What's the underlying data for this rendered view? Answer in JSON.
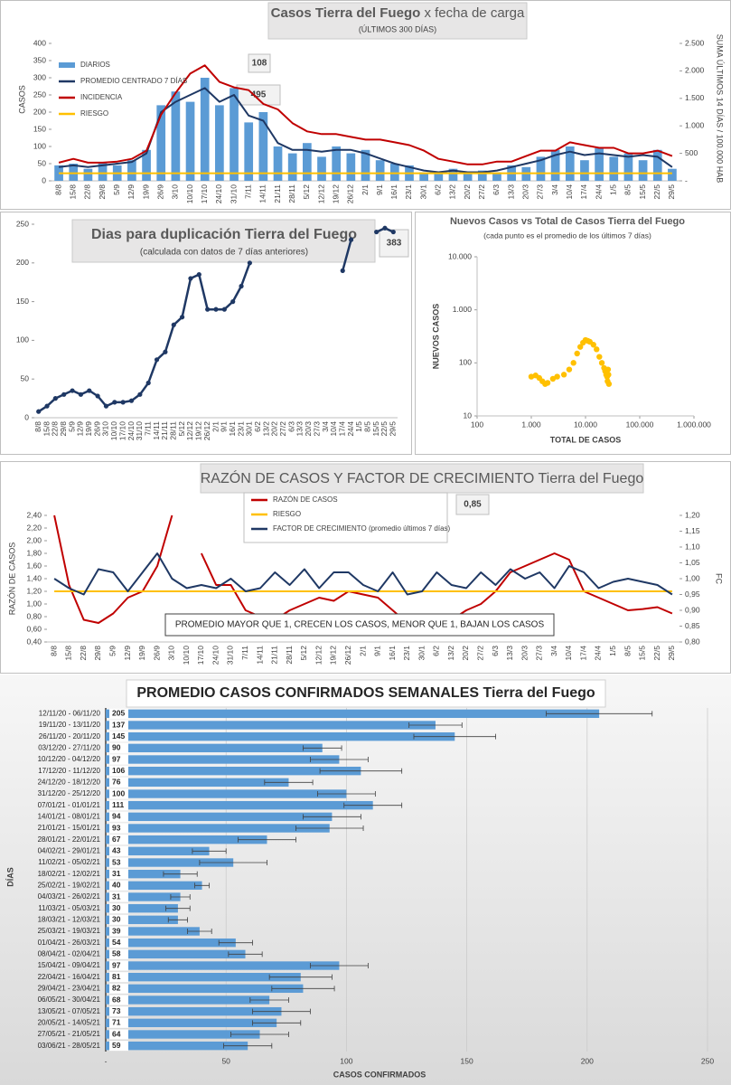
{
  "chart_data": [
    {
      "type": "combo",
      "title": "Casos Tierra del Fuego",
      "title_rest": "x fecha de carga",
      "subtitle": "(ÚLTIMOS 300 DÍAS)",
      "ylabel": "CASOS",
      "y2label": "SUMA ÚLTIMOS 14 DÍAS / 100.000 HAB",
      "annotations": [
        "108",
        "495"
      ],
      "grid": false,
      "categories": [
        "8/8",
        "15/8",
        "22/8",
        "29/8",
        "5/9",
        "12/9",
        "19/9",
        "26/9",
        "3/10",
        "10/10",
        "17/10",
        "24/10",
        "31/10",
        "7/11",
        "14/11",
        "21/11",
        "28/11",
        "5/12",
        "12/12",
        "19/12",
        "26/12",
        "2/1",
        "9/1",
        "16/1",
        "23/1",
        "30/1",
        "6/2",
        "13/2",
        "20/2",
        "27/2",
        "6/3",
        "13/3",
        "20/3",
        "27/3",
        "3/4",
        "10/4",
        "17/4",
        "24/4",
        "1/5",
        "8/5",
        "15/5",
        "22/5",
        "29/5"
      ],
      "ylim": [
        0,
        400
      ],
      "yticks": [
        0,
        50,
        100,
        150,
        200,
        250,
        300,
        350,
        400
      ],
      "y2lim": [
        0,
        2500
      ],
      "y2ticks": [
        {
          "value": 0,
          "label": "-"
        },
        500,
        {
          "value": 1000,
          "label": "1.000"
        },
        {
          "value": 1500,
          "label": "1.500"
        },
        {
          "value": 2000,
          "label": "2.000"
        },
        {
          "value": 2500,
          "label": "2.500"
        }
      ],
      "series": [
        {
          "name": "DIARIOS",
          "style": "bar",
          "color": "#5b9bd5",
          "values": [
            45,
            50,
            35,
            55,
            45,
            60,
            90,
            220,
            260,
            230,
            300,
            220,
            270,
            170,
            200,
            100,
            80,
            110,
            70,
            100,
            80,
            90,
            60,
            50,
            45,
            25,
            20,
            35,
            20,
            30,
            25,
            45,
            40,
            70,
            90,
            100,
            60,
            95,
            70,
            80,
            60,
            90,
            35
          ]
        },
        {
          "name": "PROMEDIO CENTRADO 7 DÍAS",
          "color": "#1f3864",
          "values": [
            40,
            45,
            40,
            45,
            50,
            55,
            80,
            200,
            230,
            250,
            270,
            230,
            250,
            190,
            175,
            110,
            90,
            90,
            85,
            90,
            90,
            80,
            65,
            50,
            40,
            30,
            25,
            30,
            25,
            25,
            30,
            40,
            50,
            60,
            75,
            85,
            75,
            80,
            75,
            70,
            75,
            70,
            40
          ]
        },
        {
          "name": "INCIDENCIA",
          "color": "#c00000",
          "axis": "y2",
          "values": [
            330,
            400,
            330,
            330,
            350,
            400,
            550,
            1200,
            1600,
            1950,
            2100,
            1800,
            1700,
            1650,
            1400,
            1300,
            1050,
            900,
            850,
            850,
            800,
            750,
            750,
            700,
            650,
            550,
            400,
            350,
            300,
            300,
            350,
            350,
            450,
            550,
            550,
            700,
            650,
            600,
            600,
            500,
            500,
            550,
            450
          ]
        },
        {
          "name": "RIESGO",
          "color": "#ffc000",
          "values": [
            22,
            22,
            22,
            22,
            22,
            22,
            22,
            22,
            22,
            22,
            22,
            22,
            22,
            22,
            22,
            22,
            22,
            22,
            22,
            22,
            22,
            22,
            22,
            22,
            22,
            22,
            22,
            22,
            22,
            22,
            22,
            22,
            22,
            22,
            22,
            22,
            22,
            22,
            22,
            22,
            22,
            22,
            22
          ]
        }
      ]
    },
    {
      "type": "line",
      "title": "Dias para duplicación Tierra del Fuego",
      "subtitle": "(calculada con datos de 7 días anteriores)",
      "annotations": [
        "383"
      ],
      "grid": false,
      "categories": [
        "8/8",
        "15/8",
        "22/8",
        "29/8",
        "5/9",
        "12/9",
        "19/9",
        "26/9",
        "3/10",
        "10/10",
        "17/10",
        "24/10",
        "31/10",
        "7/11",
        "14/11",
        "21/11",
        "28/11",
        "5/12",
        "12/12",
        "19/12",
        "26/12",
        "2/1",
        "9/1",
        "16/1",
        "23/1",
        "30/1",
        "6/2",
        "13/2",
        "20/2",
        "27/2",
        "6/3",
        "13/3",
        "20/3",
        "27/3",
        "3/4",
        "10/4",
        "17/4",
        "24/4",
        "1/5",
        "8/5",
        "15/5",
        "22/5",
        "29/5"
      ],
      "ylim": [
        0,
        250
      ],
      "yticks": [
        0,
        50,
        100,
        150,
        200,
        250
      ],
      "series": [
        {
          "color": "#1f3864",
          "markers": true,
          "values": [
            8,
            15,
            25,
            30,
            35,
            30,
            35,
            28,
            15,
            20,
            20,
            22,
            30,
            45,
            75,
            85,
            120,
            130,
            180,
            185,
            140,
            140,
            140,
            150,
            170,
            200,
            null,
            null,
            null,
            null,
            null,
            null,
            null,
            null,
            null,
            null,
            190,
            230,
            null,
            null,
            240,
            245,
            240
          ]
        }
      ]
    },
    {
      "type": "scatter",
      "title": "Nuevos Casos vs Total de Casos Tierra del Fuego",
      "subtitle": "(cada punto es el promedio de los últimos 7 días)",
      "xlabel": "TOTAL DE CASOS",
      "ylabel": "NUEVOS CASOS",
      "log_x": true,
      "log_y": true,
      "color": "#ffc000",
      "xlim": [
        100,
        1000000
      ],
      "xticks": [
        100,
        {
          "value": 1000,
          "label": "1.000"
        },
        {
          "value": 10000,
          "label": "10.000"
        },
        {
          "value": 100000,
          "label": "100.000"
        },
        {
          "value": 1000000,
          "label": "1.000.000"
        }
      ],
      "ylim": [
        10,
        10000
      ],
      "yticks": [
        10,
        100,
        {
          "value": 1000,
          "label": "1.000"
        },
        {
          "value": 10000,
          "label": "10.000"
        }
      ],
      "x": [
        1000,
        1200,
        1400,
        1600,
        1800,
        2000,
        2500,
        3000,
        4000,
        5000,
        6000,
        7000,
        8000,
        9000,
        10000,
        11000,
        12000,
        14000,
        16000,
        18000,
        20000,
        22000,
        23000,
        24000,
        25000,
        25500,
        26000,
        26500,
        27000
      ],
      "values": [
        55,
        58,
        52,
        45,
        40,
        42,
        50,
        55,
        60,
        75,
        100,
        150,
        200,
        240,
        270,
        260,
        250,
        220,
        180,
        130,
        100,
        80,
        70,
        60,
        55,
        45,
        75,
        60,
        40
      ]
    },
    {
      "type": "line",
      "title": "RAZÓN DE CASOS Y FACTOR DE CRECIMIENTO Tierra del Fuego",
      "ylabel": "RAZÓN DE CASOS",
      "y2label": "FC",
      "annotations": [
        "0,85"
      ],
      "note": "PROMEDIO MAYOR QUE 1, CRECEN LOS CASOS, MENOR QUE 1, BAJAN LOS CASOS",
      "grid": false,
      "categories": [
        "8/8",
        "15/8",
        "22/8",
        "29/8",
        "5/9",
        "12/9",
        "19/9",
        "26/9",
        "3/10",
        "10/10",
        "17/10",
        "24/10",
        "31/10",
        "7/11",
        "14/11",
        "21/11",
        "28/11",
        "5/12",
        "12/12",
        "19/12",
        "26/12",
        "2/1",
        "9/1",
        "16/1",
        "23/1",
        "30/1",
        "6/2",
        "13/2",
        "20/2",
        "27/2",
        "6/3",
        "13/3",
        "20/3",
        "27/3",
        "3/4",
        "10/4",
        "17/4",
        "24/4",
        "1/5",
        "8/5",
        "15/5",
        "22/5",
        "29/5"
      ],
      "ylim": [
        0.4,
        2.4
      ],
      "yticks": [
        {
          "value": 0.4,
          "label": "0,40"
        },
        {
          "value": 0.6,
          "label": "0,60"
        },
        {
          "value": 0.8,
          "label": "0,80"
        },
        {
          "value": 1.0,
          "label": "1,00"
        },
        {
          "value": 1.2,
          "label": "1,20"
        },
        {
          "value": 1.4,
          "label": "1,40"
        },
        {
          "value": 1.6,
          "label": "1,60"
        },
        {
          "value": 1.8,
          "label": "1,80"
        },
        {
          "value": 2.0,
          "label": "2,00"
        },
        {
          "value": 2.2,
          "label": "2,20"
        },
        {
          "value": 2.4,
          "label": "2,40"
        }
      ],
      "y2lim": [
        0.8,
        1.2
      ],
      "y2ticks": [
        {
          "value": 0.8,
          "label": "0,80"
        },
        {
          "value": 0.85,
          "label": "0,85"
        },
        {
          "value": 0.9,
          "label": "0,90"
        },
        {
          "value": 0.95,
          "label": "0,95"
        },
        {
          "value": 1.0,
          "label": "1,00"
        },
        {
          "value": 1.05,
          "label": "1,05"
        },
        {
          "value": 1.1,
          "label": "1,10"
        },
        {
          "value": 1.15,
          "label": "1,15"
        },
        {
          "value": 1.2,
          "label": "1,20"
        }
      ],
      "series": [
        {
          "name": "RAZÓN DE CASOS",
          "color": "#c00000",
          "values": [
            2.4,
            1.3,
            0.75,
            0.7,
            0.85,
            1.1,
            1.2,
            1.6,
            2.4,
            null,
            1.8,
            1.3,
            1.3,
            0.9,
            0.8,
            0.75,
            0.9,
            1.0,
            1.1,
            1.05,
            1.2,
            1.15,
            1.1,
            0.9,
            0.7,
            0.55,
            0.6,
            0.75,
            0.9,
            1.0,
            1.2,
            1.5,
            1.6,
            1.7,
            1.8,
            1.7,
            1.2,
            1.1,
            1.0,
            0.9,
            0.92,
            0.95,
            0.85
          ]
        },
        {
          "name": "RIESGO",
          "color": "#ffc000",
          "values": [
            1.2,
            1.2,
            1.2,
            1.2,
            1.2,
            1.2,
            1.2,
            1.2,
            1.2,
            1.2,
            1.2,
            1.2,
            1.2,
            1.2,
            1.2,
            1.2,
            1.2,
            1.2,
            1.2,
            1.2,
            1.2,
            1.2,
            1.2,
            1.2,
            1.2,
            1.2,
            1.2,
            1.2,
            1.2,
            1.2,
            1.2,
            1.2,
            1.2,
            1.2,
            1.2,
            1.2,
            1.2,
            1.2,
            1.2,
            1.2,
            1.2,
            1.2,
            1.2
          ]
        },
        {
          "name": "FACTOR DE CRECIMIENTO (promedio últimos 7 días)",
          "color": "#1f3864",
          "axis": "y2",
          "values": [
            1.0,
            0.97,
            0.95,
            1.03,
            1.02,
            0.96,
            1.02,
            1.08,
            1.0,
            0.97,
            0.98,
            0.97,
            1.0,
            0.96,
            0.97,
            1.02,
            0.98,
            1.03,
            0.97,
            1.02,
            1.02,
            0.98,
            0.96,
            1.02,
            0.95,
            0.96,
            1.02,
            0.98,
            0.97,
            1.02,
            0.98,
            1.03,
            1.0,
            1.02,
            0.97,
            1.04,
            1.02,
            0.97,
            0.99,
            1.0,
            0.99,
            0.98,
            0.95
          ]
        }
      ]
    },
    {
      "type": "hbar",
      "title": "PROMEDIO CASOS CONFIRMADOS SEMANALES Tierra del Fuego",
      "xlabel": "CASOS CONFIRMADOS",
      "ylabel": "DÍAS",
      "color": "#5b9bd5",
      "grid": true,
      "categories": [
        "12/11/20 - 06/11/20",
        "19/11/20 - 13/11/20",
        "26/11/20 - 20/11/20",
        "03/12/20 - 27/11/20",
        "10/12/20 - 04/12/20",
        "17/12/20 - 11/12/20",
        "24/12/20 - 18/12/20",
        "31/12/20 - 25/12/20",
        "07/01/21 - 01/01/21",
        "14/01/21 - 08/01/21",
        "21/01/21 - 15/01/21",
        "28/01/21 - 22/01/21",
        "04/02/21 - 29/01/21",
        "11/02/21 - 05/02/21",
        "18/02/21 - 12/02/21",
        "25/02/21 - 19/02/21",
        "04/03/21 - 26/02/21",
        "11/03/21 - 05/03/21",
        "18/03/21 - 12/03/21",
        "25/03/21 - 19/03/21",
        "01/04/21 - 26/03/21",
        "08/04/21 - 02/04/21",
        "15/04/21 - 09/04/21",
        "22/04/21 - 16/04/21",
        "29/04/21 - 23/04/21",
        "06/05/21 - 30/04/21",
        "13/05/21 - 07/05/21",
        "20/05/21 - 14/05/21",
        "27/05/21 - 21/05/21",
        "03/06/21 - 28/05/21"
      ],
      "values": [
        205,
        137,
        145,
        90,
        97,
        106,
        76,
        100,
        111,
        94,
        93,
        67,
        43,
        53,
        31,
        40,
        31,
        30,
        30,
        39,
        54,
        58,
        97,
        81,
        82,
        68,
        73,
        71,
        64,
        59
      ],
      "errors": [
        22,
        11,
        17,
        8,
        12,
        17,
        10,
        12,
        12,
        12,
        14,
        12,
        7,
        14,
        7,
        3,
        4,
        5,
        4,
        5,
        7,
        7,
        12,
        13,
        13,
        8,
        12,
        10,
        12,
        10
      ],
      "xlim": [
        0,
        250
      ],
      "xticks": [
        {
          "value": 0,
          "label": "-"
        },
        50,
        100,
        150,
        200,
        250
      ]
    }
  ]
}
